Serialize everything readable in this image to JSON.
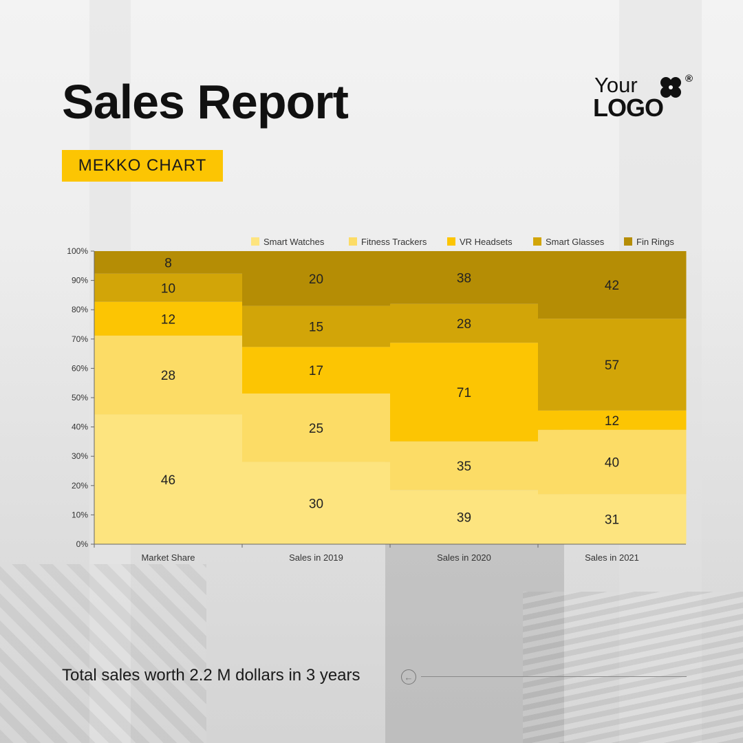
{
  "header": {
    "title": "Sales Report",
    "badge": "MEKKO CHART"
  },
  "logo": {
    "line1": "Your",
    "line2": "LOGO",
    "registered": "®",
    "icon": "clover-icon"
  },
  "footer": {
    "text": "Total sales worth 2.2 M dollars in 3 years",
    "icon": "arrow-left-circle-icon"
  },
  "colors": {
    "accent": "#fcc503",
    "series": [
      "#fde47f",
      "#fcdc66",
      "#fcc503",
      "#d2a508",
      "#b58d05"
    ]
  },
  "chart_data": {
    "type": "bar",
    "stacked": "percent",
    "categories": [
      "Market Share",
      "Sales in 2019",
      "Sales in 2020",
      "Sales in 2021"
    ],
    "series": [
      {
        "name": "Smart Watches",
        "values": [
          46,
          30,
          39,
          31
        ]
      },
      {
        "name": "Fitness Trackers",
        "values": [
          28,
          25,
          35,
          40
        ]
      },
      {
        "name": "VR Headsets",
        "values": [
          12,
          17,
          71,
          12
        ]
      },
      {
        "name": "Smart Glasses",
        "values": [
          10,
          15,
          28,
          57
        ]
      },
      {
        "name": "Fin Rings",
        "values": [
          8,
          20,
          38,
          42
        ]
      }
    ],
    "y_ticks": [
      "0%",
      "10%",
      "20%",
      "30%",
      "40%",
      "50%",
      "60%",
      "70%",
      "80%",
      "90%",
      "100%"
    ],
    "ylim": [
      0,
      100
    ],
    "legend": "top-right",
    "grid": false
  }
}
